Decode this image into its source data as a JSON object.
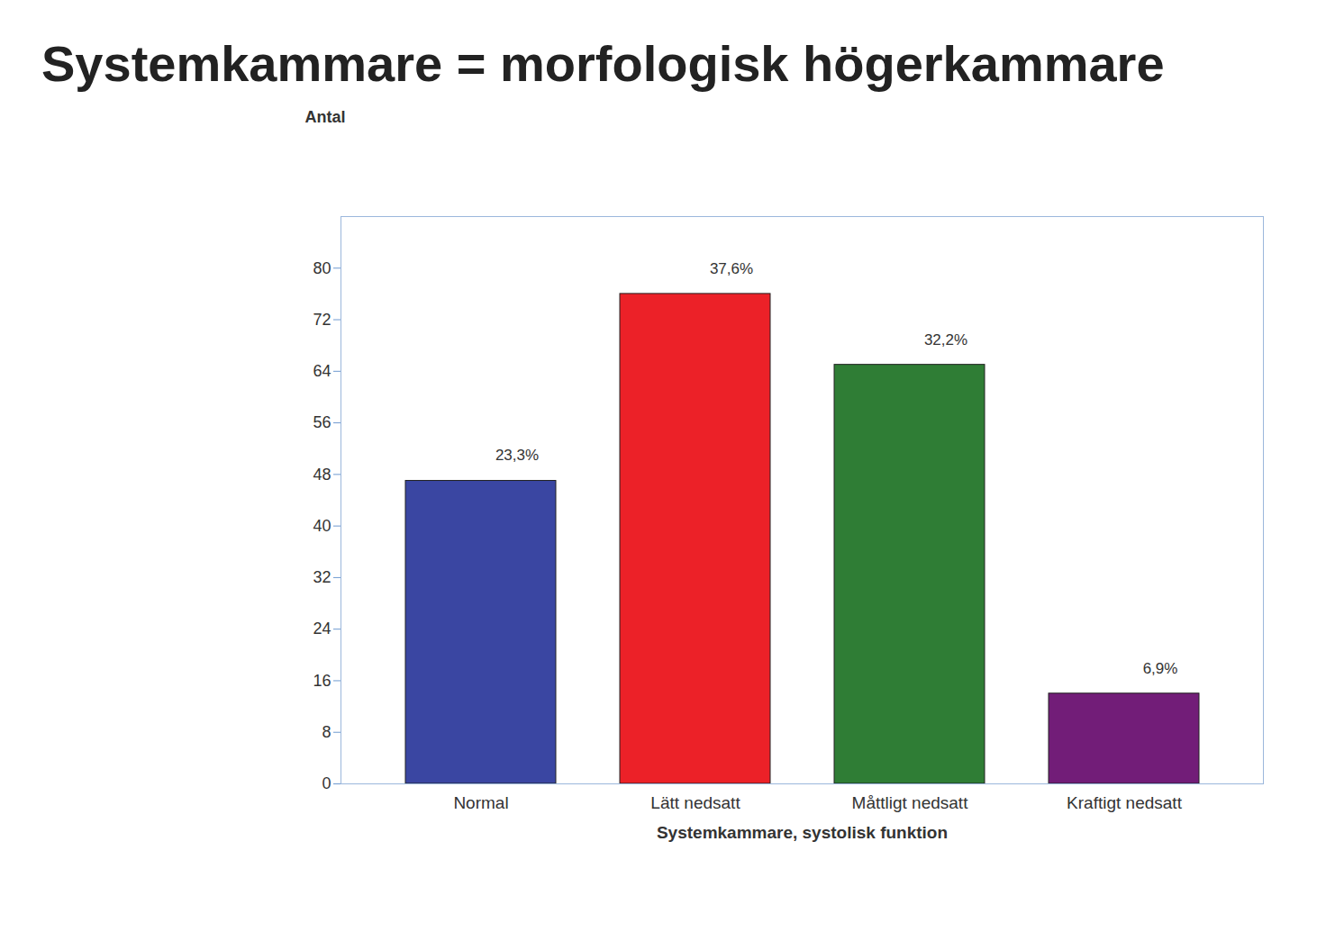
{
  "chart_data": {
    "type": "bar",
    "title": "Systemkammare = morfologisk högerkammare",
    "x_label": "Systemkammare, systolisk funktion",
    "y_label": "Antal",
    "categories": [
      "Normal",
      "Lätt nedsatt",
      "Måttligt nedsatt",
      "Kraftigt nedsatt"
    ],
    "values": [
      47,
      76,
      65,
      14
    ],
    "colors": [
      "#3a46a2",
      "#ec2128",
      "#2f7d35",
      "#721d78"
    ],
    "annotations": [
      "23,3%",
      "37,6%",
      "32,2%",
      "6,9%"
    ],
    "ylim": [
      0,
      88
    ],
    "yticks": [
      0,
      8,
      16,
      24,
      32,
      40,
      48,
      56,
      64,
      72,
      80
    ],
    "grid": false
  }
}
